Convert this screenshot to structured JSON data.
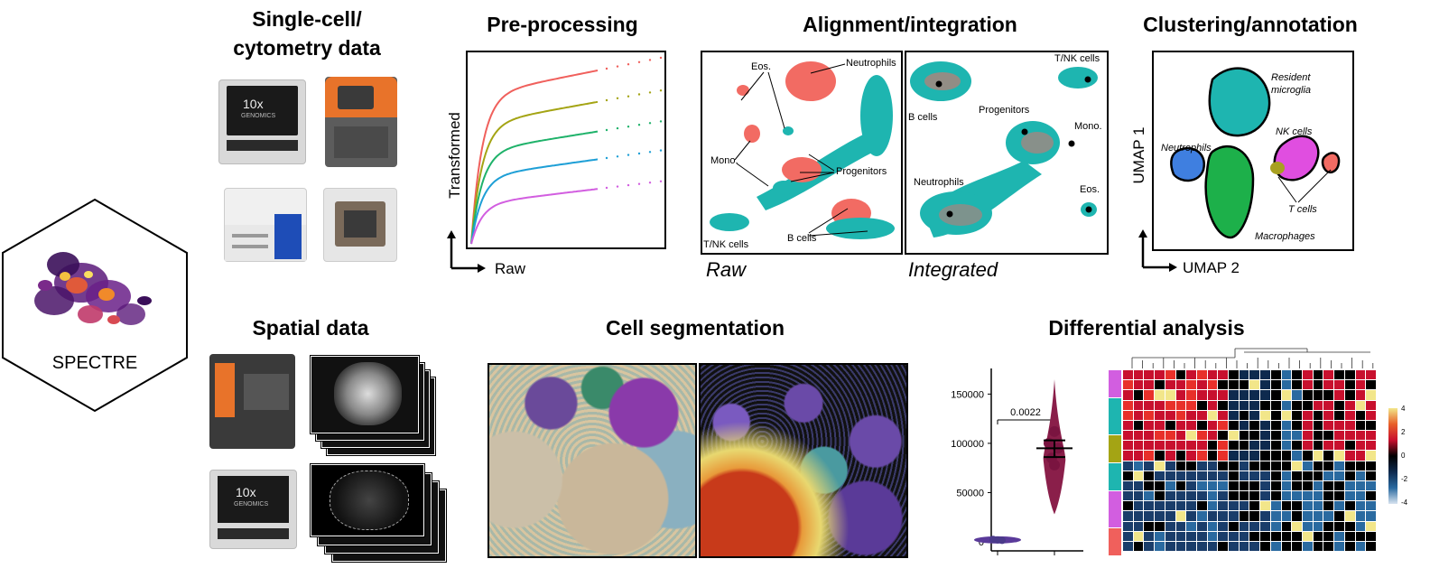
{
  "logo": {
    "text": "SPECTRE"
  },
  "sections": {
    "single_cell": {
      "title_line1": "Single-cell/",
      "title_line2": "cytometry data",
      "device_badge": "10x",
      "device_badge_sub": "GENOMICS"
    },
    "preprocessing": {
      "title": "Pre-processing",
      "ylabel": "Transformed",
      "xlabel": "Raw"
    },
    "alignment": {
      "title": "Alignment/integration",
      "raw_label": "Raw",
      "integrated_label": "Integrated",
      "raw_labels": [
        "Eos.",
        "Neutrophils",
        "Mono.",
        "Progenitors",
        "T/NK cells",
        "B cells"
      ],
      "integrated_labels": [
        "T/NK cells",
        "B cells",
        "Progenitors",
        "Mono.",
        "Neutrophils",
        "Eos."
      ]
    },
    "clustering": {
      "title": "Clustering/annotation",
      "ylabel": "UMAP 1",
      "xlabel": "UMAP 2",
      "labels": [
        "Resident",
        "microglia",
        "NK cells",
        "Neutrophils",
        "T cells",
        "Macrophages"
      ]
    },
    "spatial": {
      "title": "Spatial data",
      "device_badge": "10x",
      "device_badge_sub": "GENOMICS"
    },
    "segmentation": {
      "title": "Cell segmentation"
    },
    "differential": {
      "title": "Differential analysis",
      "pvalue": "0.0022",
      "yticks": [
        "150000",
        "100000",
        "50000",
        "0"
      ],
      "scale_ticks": [
        "4",
        "2",
        "0",
        "-2",
        "-4"
      ]
    }
  },
  "chart_data": [
    {
      "type": "line",
      "series": [
        {
          "color": "#f0605c"
        },
        {
          "color": "#a4a414"
        },
        {
          "color": "#1fb26a"
        },
        {
          "color": "#1e9fd6"
        },
        {
          "color": "#d25ee0"
        }
      ]
    },
    {
      "type": "scatter",
      "yticks": [
        0,
        50000,
        100000,
        150000
      ],
      "ylim": [
        0,
        165000
      ],
      "annotation": "0.0022"
    }
  ],
  "colors": {
    "coral": "#f26b63",
    "teal": "#1eb5b0",
    "purple": "#5a2a86",
    "red": "#c8102e",
    "navy": "#0e2a4e"
  }
}
